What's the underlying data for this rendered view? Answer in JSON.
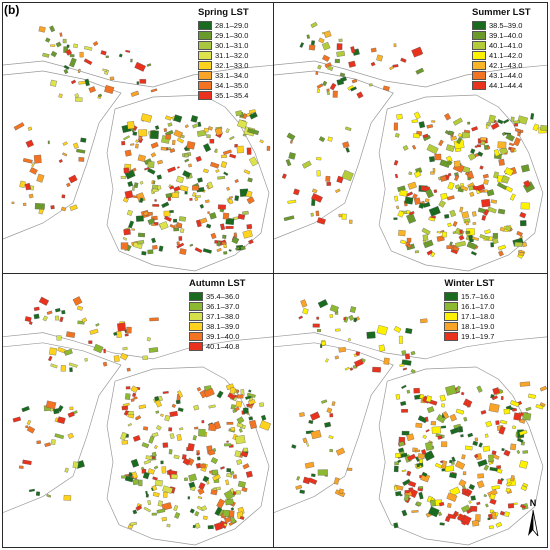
{
  "figure": {
    "panel_label": "(b)",
    "north_label": "N"
  },
  "panels": [
    {
      "id": "spring",
      "title": "Spring LST",
      "classes": [
        {
          "label": "28.1–29.0",
          "color": "#1a6b1f"
        },
        {
          "label": "29.1–30.0",
          "color": "#6b9a2c"
        },
        {
          "label": "30.1–31.0",
          "color": "#a9c640"
        },
        {
          "label": "31.1–32.0",
          "color": "#dde34a"
        },
        {
          "label": "32.1–33.0",
          "color": "#ffd21e"
        },
        {
          "label": "33.1–34.0",
          "color": "#f9a428"
        },
        {
          "label": "34.1–35.0",
          "color": "#f27423"
        },
        {
          "label": "35.1–35.4",
          "color": "#e8321e"
        }
      ]
    },
    {
      "id": "summer",
      "title": "Summer LST",
      "classes": [
        {
          "label": "38.5–39.0",
          "color": "#1a6b1f"
        },
        {
          "label": "39.1–40.0",
          "color": "#6b9a2c"
        },
        {
          "label": "40.1–41.0",
          "color": "#b4cc3a"
        },
        {
          "label": "41.1–42.0",
          "color": "#fff200"
        },
        {
          "label": "42.1–43.0",
          "color": "#f9b428"
        },
        {
          "label": "43.1–44.0",
          "color": "#f27423"
        },
        {
          "label": "44.1–44.4",
          "color": "#e8321e"
        }
      ]
    },
    {
      "id": "autumn",
      "title": "Autumn LST",
      "classes": [
        {
          "label": "35.4–36.0",
          "color": "#1a6b1f"
        },
        {
          "label": "36.1–37.0",
          "color": "#8db832"
        },
        {
          "label": "37.1–38.0",
          "color": "#d6e04a"
        },
        {
          "label": "38.1–39.0",
          "color": "#ffd21e"
        },
        {
          "label": "39.1–40.0",
          "color": "#f27423"
        },
        {
          "label": "40.1–40.8",
          "color": "#e8321e"
        }
      ]
    },
    {
      "id": "winter",
      "title": "Winter LST",
      "classes": [
        {
          "label": "15.7–16.0",
          "color": "#1a6b1f"
        },
        {
          "label": "16.1–17.0",
          "color": "#8db832"
        },
        {
          "label": "17.1–18.0",
          "color": "#fff200"
        },
        {
          "label": "18.1–19.0",
          "color": "#f9a428"
        },
        {
          "label": "19.1–19.7",
          "color": "#e8321e"
        }
      ]
    }
  ]
}
